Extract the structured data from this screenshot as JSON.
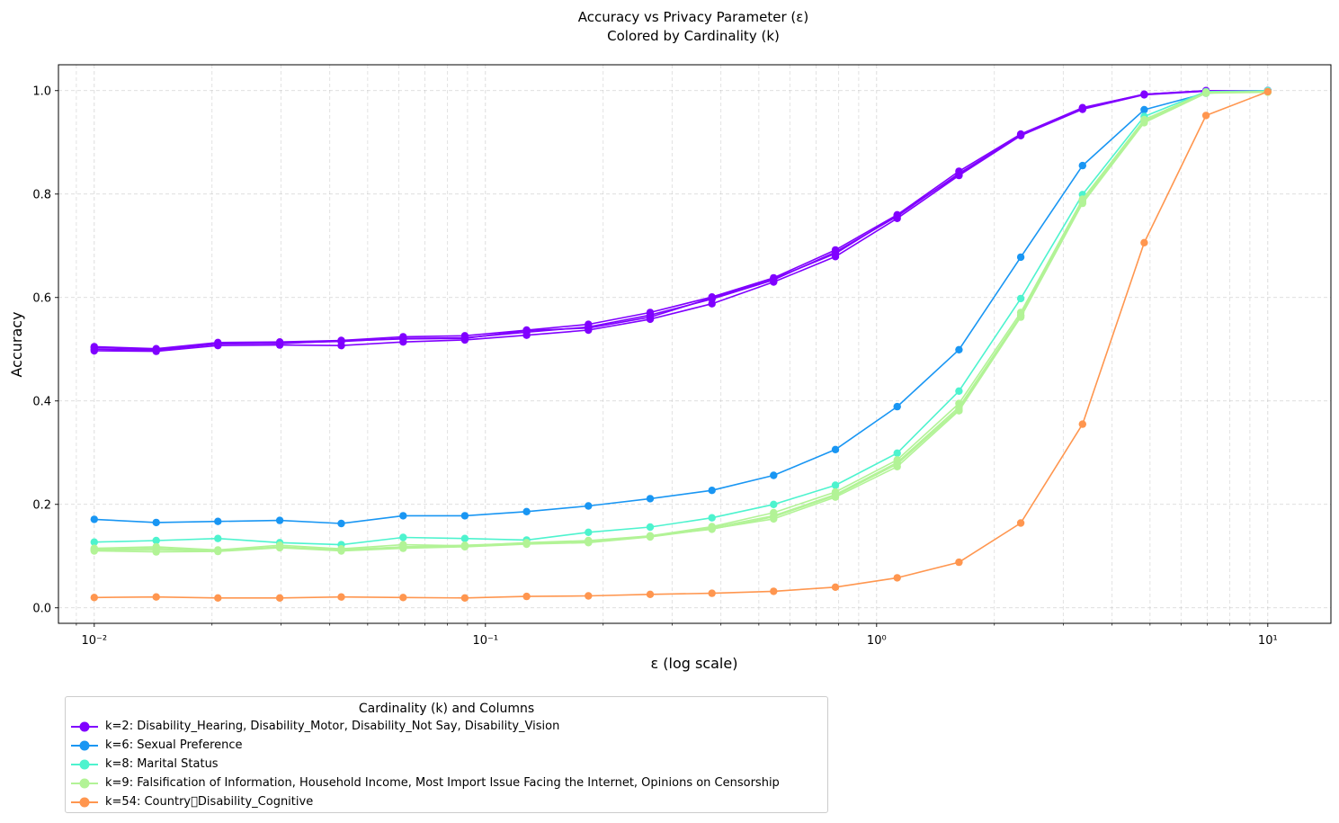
{
  "chart_data": {
    "type": "line",
    "title": "Accuracy vs Privacy Parameter (ε)",
    "subtitle": "Colored by Cardinality (k)",
    "xlabel": "ε (log scale)",
    "ylabel": "Accuracy",
    "xscale": "log",
    "xlim": [
      0.0081,
      14.5
    ],
    "ylim": [
      -0.03,
      1.05
    ],
    "grid": true,
    "x_tick_labels": [
      "10⁻²",
      "10⁻¹",
      "10⁰",
      "10¹"
    ],
    "y_tick_labels": [
      "0.0",
      "0.2",
      "0.4",
      "0.6",
      "0.8",
      "1.0"
    ],
    "x": [
      0.01,
      0.0144,
      0.0207,
      0.0298,
      0.0428,
      0.0616,
      0.0886,
      0.1274,
      0.1833,
      0.2637,
      0.3793,
      0.5456,
      0.7848,
      1.1288,
      1.6238,
      2.3357,
      3.3598,
      4.8329,
      6.9519,
      10.0
    ],
    "legend": {
      "title": "Cardinality (k) and Columns",
      "placement": "below",
      "entries": [
        {
          "label": "k=2: Disability_Hearing, Disability_Motor, Disability_Not Say, Disability_Vision",
          "color": "#8000ff"
        },
        {
          "label": "k=6: Sexual Preference",
          "color": "#1996f3"
        },
        {
          "label": "k=8: Marital Status",
          "color": "#4df3ce"
        },
        {
          "label": "k=9: Falsification of Information, Household Income, Most Import Issue Facing the Internet, Opinions on Censorship",
          "color": "#b2f396"
        },
        {
          "label": "k=54: Country\u0000Disability_Cognitive",
          "color": "#ff964f"
        }
      ]
    },
    "series": [
      {
        "k": 2,
        "color": "#8000ff",
        "values": [
          0.505,
          0.501,
          0.513,
          0.514,
          0.517,
          0.524,
          0.526,
          0.537,
          0.548,
          0.571,
          0.601,
          0.638,
          0.692,
          0.76,
          0.844,
          0.916,
          0.967,
          0.993,
          1.0,
          1.0
        ]
      },
      {
        "k": 2,
        "color": "#8000ff",
        "values": [
          0.5,
          0.498,
          0.51,
          0.512,
          0.515,
          0.521,
          0.522,
          0.533,
          0.543,
          0.566,
          0.597,
          0.634,
          0.688,
          0.757,
          0.84,
          0.914,
          0.965,
          0.993,
          0.999,
          1.0
        ]
      },
      {
        "k": 2,
        "color": "#8000ff",
        "values": [
          0.497,
          0.496,
          0.507,
          0.508,
          0.507,
          0.514,
          0.518,
          0.527,
          0.537,
          0.558,
          0.588,
          0.63,
          0.679,
          0.753,
          0.836,
          0.913,
          0.964,
          0.992,
          0.999,
          1.0
        ]
      },
      {
        "k": 2,
        "color": "#8000ff",
        "values": [
          0.503,
          0.5,
          0.511,
          0.511,
          0.516,
          0.52,
          0.521,
          0.536,
          0.541,
          0.562,
          0.599,
          0.636,
          0.685,
          0.759,
          0.838,
          0.915,
          0.966,
          0.993,
          1.0,
          1.0
        ]
      },
      {
        "k": 6,
        "color": "#1996f3",
        "values": [
          0.171,
          0.165,
          0.167,
          0.169,
          0.163,
          0.178,
          0.178,
          0.186,
          0.197,
          0.211,
          0.227,
          0.256,
          0.306,
          0.389,
          0.499,
          0.678,
          0.855,
          0.963,
          0.995,
          1.0
        ]
      },
      {
        "k": 8,
        "color": "#4df3ce",
        "values": [
          0.127,
          0.13,
          0.134,
          0.126,
          0.122,
          0.136,
          0.134,
          0.131,
          0.146,
          0.156,
          0.174,
          0.2,
          0.237,
          0.299,
          0.419,
          0.598,
          0.799,
          0.95,
          0.998,
          1.0
        ]
      },
      {
        "k": 9,
        "color": "#b2f396",
        "values": [
          0.115,
          0.118,
          0.112,
          0.121,
          0.114,
          0.122,
          0.12,
          0.126,
          0.13,
          0.139,
          0.157,
          0.184,
          0.224,
          0.286,
          0.395,
          0.571,
          0.79,
          0.944,
          0.997,
          0.998
        ]
      },
      {
        "k": 9,
        "color": "#b2f396",
        "values": [
          0.113,
          0.115,
          0.11,
          0.118,
          0.112,
          0.118,
          0.121,
          0.125,
          0.128,
          0.138,
          0.155,
          0.178,
          0.219,
          0.281,
          0.388,
          0.566,
          0.787,
          0.941,
          0.996,
          0.998
        ]
      },
      {
        "k": 9,
        "color": "#b2f396",
        "values": [
          0.11,
          0.108,
          0.109,
          0.116,
          0.11,
          0.115,
          0.118,
          0.123,
          0.126,
          0.137,
          0.153,
          0.172,
          0.214,
          0.273,
          0.381,
          0.562,
          0.782,
          0.938,
          0.995,
          0.997
        ]
      },
      {
        "k": 9,
        "color": "#b2f396",
        "values": [
          0.112,
          0.112,
          0.111,
          0.117,
          0.113,
          0.117,
          0.119,
          0.124,
          0.127,
          0.139,
          0.152,
          0.176,
          0.217,
          0.278,
          0.384,
          0.565,
          0.785,
          0.94,
          0.996,
          0.998
        ]
      },
      {
        "k": 54,
        "color": "#ff964f",
        "values": [
          0.02,
          0.021,
          0.019,
          0.019,
          0.021,
          0.02,
          0.019,
          0.022,
          0.023,
          0.026,
          0.028,
          0.032,
          0.04,
          0.058,
          0.088,
          0.164,
          0.355,
          0.706,
          0.952,
          0.998
        ]
      }
    ]
  }
}
